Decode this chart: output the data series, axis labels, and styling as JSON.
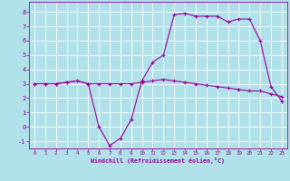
{
  "xlabel": "Windchill (Refroidissement éolien,°C)",
  "ylim_min": -1.5,
  "ylim_max": 8.7,
  "xlim_min": -0.5,
  "xlim_max": 23.5,
  "yticks": [
    -1,
    0,
    1,
    2,
    3,
    4,
    5,
    6,
    7,
    8
  ],
  "xticks": [
    0,
    1,
    2,
    3,
    4,
    5,
    6,
    7,
    8,
    9,
    10,
    11,
    12,
    13,
    14,
    15,
    16,
    17,
    18,
    19,
    20,
    21,
    22,
    23
  ],
  "line_color": "#990099",
  "bg_color": "#b0e0e8",
  "grid_color": "#ffffff",
  "line1_x": [
    0,
    1,
    2,
    3,
    4,
    5,
    6,
    7,
    8,
    9,
    10,
    11,
    12,
    13,
    14,
    15,
    16,
    17,
    18,
    19,
    20,
    21,
    22,
    23
  ],
  "line1_y": [
    3.0,
    3.0,
    3.0,
    3.1,
    3.2,
    3.0,
    0.0,
    -1.3,
    -0.8,
    0.5,
    3.2,
    4.5,
    5.0,
    7.8,
    7.9,
    7.7,
    7.7,
    7.7,
    7.3,
    7.5,
    7.5,
    6.0,
    2.8,
    1.8
  ],
  "line2_x": [
    0,
    1,
    2,
    3,
    4,
    5,
    6,
    7,
    8,
    9,
    10,
    11,
    12,
    13,
    14,
    15,
    16,
    17,
    18,
    19,
    20,
    21,
    22,
    23
  ],
  "line2_y": [
    3.0,
    3.0,
    3.0,
    3.1,
    3.2,
    3.0,
    3.0,
    3.0,
    3.0,
    3.0,
    3.1,
    3.2,
    3.3,
    3.2,
    3.1,
    3.0,
    2.9,
    2.8,
    2.7,
    2.6,
    2.5,
    2.5,
    2.3,
    2.1
  ]
}
